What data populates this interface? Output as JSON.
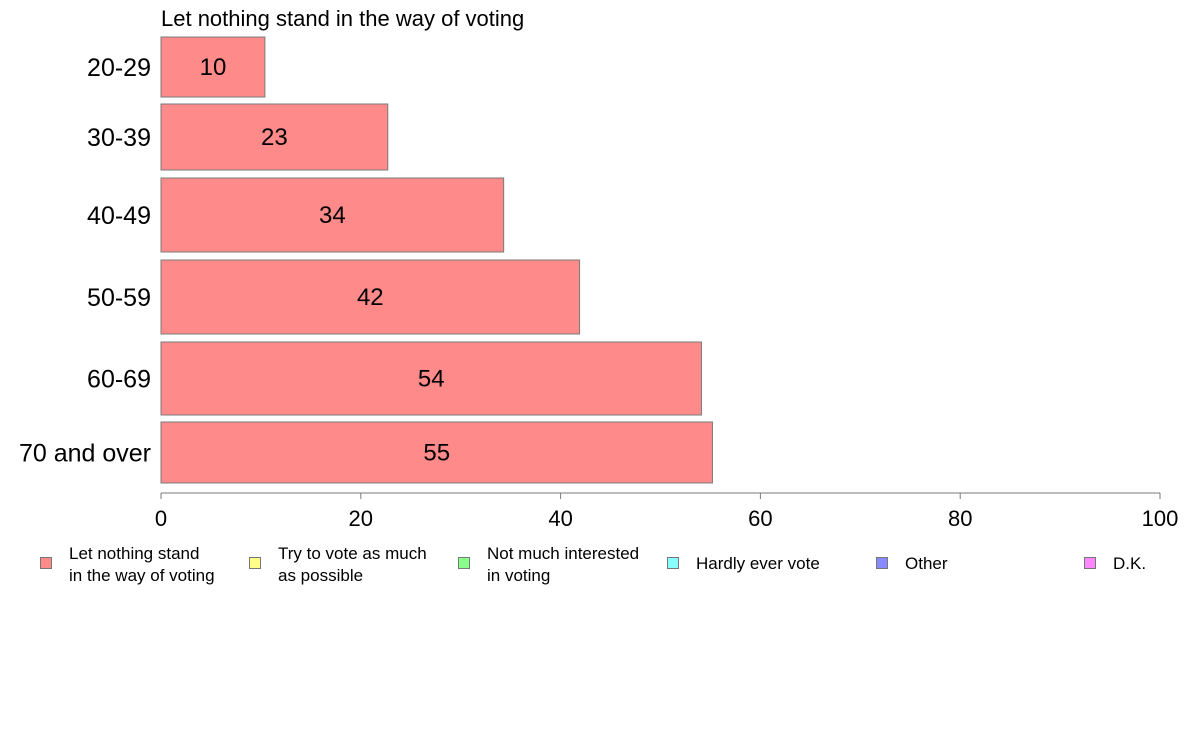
{
  "chart_data": {
    "type": "bar",
    "orientation": "horizontal",
    "title": "Let nothing stand in the way of voting",
    "categories": [
      "20-29",
      "30-39",
      "40-49",
      "50-59",
      "60-69",
      "70 and over"
    ],
    "values": [
      10.4,
      22.7,
      34.3,
      41.9,
      54.1,
      55.2
    ],
    "data_labels": [
      "10",
      "23",
      "34",
      "42",
      "54",
      "55"
    ],
    "xlim": [
      0,
      100
    ],
    "xticks": [
      0,
      20,
      40,
      60,
      80,
      100
    ],
    "xtick_labels": [
      "0",
      "20",
      "40",
      "60",
      "80",
      "100"
    ],
    "bar_color": "#ff8a8a",
    "grid": false,
    "legend_position": "bottom",
    "legend": [
      {
        "label": "Let nothing stand\nin the way of voting",
        "color": "#ff8a8a"
      },
      {
        "label": "Try to vote as much\nas possible",
        "color": "#ffff88"
      },
      {
        "label": "Not much interested\nin voting",
        "color": "#88ff88"
      },
      {
        "label": "Hardly ever vote",
        "color": "#88ffff"
      },
      {
        "label": "Other",
        "color": "#8888ff"
      },
      {
        "label": "D.K.",
        "color": "#ff88ff"
      }
    ]
  }
}
